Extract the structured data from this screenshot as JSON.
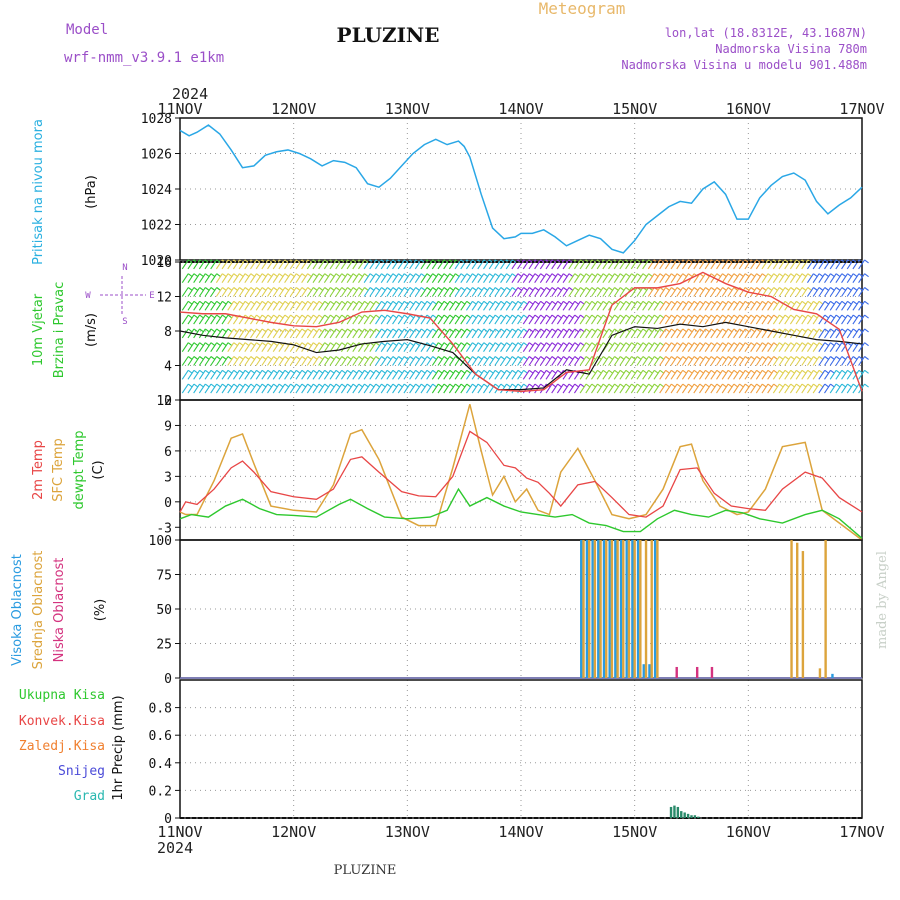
{
  "header": {
    "model_label": "Model",
    "model_name": "wrf-nmm_v3.9.1 e1km",
    "station": "PLUZINE",
    "product": "Meteogram",
    "lonlat": "lon,lat (18.8312E, 43.1687N)",
    "elevation": "Nadmorska Visina 780m",
    "model_elevation": "Nadmorska Visina u modelu 901.488m"
  },
  "footer": {
    "station": "PLUZINE",
    "credit": "made by Angel"
  },
  "time_axis": {
    "year": "2024",
    "ticks": [
      "11NOV",
      "12NOV",
      "13NOV",
      "14NOV",
      "15NOV",
      "16NOV",
      "17NOV"
    ]
  },
  "panel_labels": {
    "pressure": {
      "name": "Pritisak na nivou mora",
      "unit": "(hPa)"
    },
    "wind": {
      "name1": "10m Vjetar",
      "name2": "Brzina i Pravac",
      "unit": "(m/s)",
      "compass_n": "N",
      "compass_s": "S",
      "compass_e": "E",
      "compass_w": "W"
    },
    "temp": {
      "l1": "2m Temp",
      "l2": "SFC Temp",
      "l3": "dewpt Temp",
      "unit": "(C)"
    },
    "cloud": {
      "l1": "Visoka Oblacnost",
      "l2": "Srednja Oblacnost",
      "l3": "Niska Oblacnost",
      "unit": "(%)"
    },
    "precip": {
      "legend": [
        "Ukupna Kisa",
        "Konvek.Kisa",
        "Zaledj.Kisa",
        "Snijeg",
        "Grad"
      ],
      "unit": "1hr Precip (mm)"
    }
  },
  "colors": {
    "pressure": "#2aa7e6",
    "temp2m": "#e84646",
    "sfc": "#dca43c",
    "dewpt": "#2ec82e",
    "high_cloud": "#2a9be0",
    "mid_cloud": "#dca43c",
    "low_cloud": "#d4337f",
    "rain": "#2ec82e",
    "conv": "#e84646",
    "frz": "#f08030",
    "snow": "#4a4ad8",
    "hail": "#2ab8b0",
    "title_purple": "#9b4fc8",
    "title_orange": "#e8b86a",
    "legend_cyan": "#2ab0e0"
  },
  "chart_data": [
    {
      "type": "line",
      "title": "",
      "ylabel": "Pritisak na nivou mora (hPa)",
      "ylim": [
        1020,
        1028
      ],
      "yticks": [
        "1020",
        "1022",
        "1024",
        "1026",
        "1028"
      ],
      "x_start": "11NOV",
      "x_end": "17NOV",
      "series": [
        {
          "name": "Pritisak na nivou mora",
          "x": [
            0,
            0.08,
            0.15,
            0.25,
            0.35,
            0.45,
            0.55,
            0.65,
            0.75,
            0.85,
            0.95,
            1.05,
            1.15,
            1.25,
            1.35,
            1.45,
            1.55,
            1.65,
            1.75,
            1.85,
            1.95,
            2.05,
            2.15,
            2.25,
            2.35,
            2.45,
            2.5,
            2.55,
            2.65,
            2.75,
            2.85,
            2.95,
            3.0,
            3.1,
            3.2,
            3.3,
            3.4,
            3.5,
            3.6,
            3.7,
            3.8,
            3.9,
            4.0,
            4.1,
            4.2,
            4.3,
            4.4,
            4.5,
            4.6,
            4.7,
            4.8,
            4.9,
            5.0,
            5.1,
            5.2,
            5.3,
            5.4,
            5.5,
            5.6,
            5.7,
            5.8,
            5.9,
            6.0
          ],
          "y": [
            1027.3,
            1027.0,
            1027.2,
            1027.6,
            1027.1,
            1026.2,
            1025.2,
            1025.3,
            1025.9,
            1026.1,
            1026.2,
            1026.0,
            1025.7,
            1025.3,
            1025.6,
            1025.5,
            1025.2,
            1024.3,
            1024.1,
            1024.6,
            1025.3,
            1026.0,
            1026.5,
            1026.8,
            1026.5,
            1026.7,
            1026.4,
            1025.8,
            1023.7,
            1021.8,
            1021.2,
            1021.3,
            1021.5,
            1021.5,
            1021.7,
            1021.3,
            1020.8,
            1021.1,
            1021.4,
            1021.2,
            1020.6,
            1020.4,
            1021.1,
            1022.0,
            1022.5,
            1023.0,
            1023.3,
            1023.2,
            1024.0,
            1024.4,
            1023.7,
            1022.3,
            1022.3,
            1023.5,
            1024.2,
            1024.7,
            1024.9,
            1024.5,
            1023.3,
            1022.6,
            1023.1,
            1023.5,
            1024.1
          ]
        }
      ]
    },
    {
      "type": "line",
      "title": "",
      "ylabel": "10m Vjetar Brzina i Pravac (m/s)",
      "ylim": [
        0,
        16
      ],
      "yticks": [
        "0",
        "4",
        "8",
        "12",
        "16"
      ],
      "series": [
        {
          "name": "",
          "x": [
            0,
            0.2,
            0.4,
            0.6,
            0.8,
            1.0,
            1.2,
            1.4,
            1.6,
            1.8,
            2.0,
            2.2,
            2.4,
            2.6,
            2.8,
            3.0,
            3.2,
            3.4,
            3.6,
            3.8,
            4.0,
            4.2,
            4.4,
            4.6,
            4.8,
            5.0,
            5.2,
            5.4,
            5.6,
            5.8,
            6.0
          ],
          "y": [
            8.0,
            7.5,
            7.2,
            7.0,
            6.8,
            6.4,
            5.5,
            5.8,
            6.5,
            6.8,
            7.0,
            6.3,
            5.5,
            3.0,
            1.2,
            1.2,
            1.4,
            3.5,
            3.0,
            7.5,
            8.5,
            8.3,
            8.8,
            8.5,
            9.0,
            8.5,
            8.0,
            7.5,
            7.0,
            6.8,
            6.5
          ]
        },
        {
          "name": "",
          "x": [
            0,
            0.2,
            0.4,
            0.6,
            0.8,
            1.0,
            1.2,
            1.4,
            1.6,
            1.8,
            2.0,
            2.2,
            2.4,
            2.6,
            2.8,
            3.0,
            3.2,
            3.4,
            3.6,
            3.8,
            4.0,
            4.2,
            4.4,
            4.6,
            4.8,
            5.0,
            5.2,
            5.4,
            5.6,
            5.8,
            6.0
          ],
          "y": [
            10.2,
            10.0,
            10.0,
            9.5,
            9.0,
            8.6,
            8.5,
            9.0,
            10.2,
            10.4,
            10.0,
            9.5,
            6.5,
            3.0,
            1.2,
            1.0,
            1.2,
            3.2,
            3.5,
            11.0,
            13.0,
            13.0,
            13.5,
            14.8,
            13.5,
            12.5,
            12.0,
            10.5,
            10.0,
            8.2,
            1.0
          ]
        }
      ]
    },
    {
      "type": "line",
      "title": "",
      "ylabel": "Temp (C)",
      "ylim": [
        -4.5,
        12
      ],
      "yticks": [
        "-3",
        "0",
        "3",
        "6",
        "9",
        "12"
      ],
      "series": [
        {
          "name": "2m Temp",
          "x": [
            0,
            0.05,
            0.15,
            0.3,
            0.45,
            0.55,
            0.65,
            0.8,
            1.0,
            1.2,
            1.35,
            1.5,
            1.6,
            1.75,
            1.95,
            2.1,
            2.25,
            2.4,
            2.55,
            2.7,
            2.85,
            2.95,
            3.05,
            3.15,
            3.25,
            3.35,
            3.5,
            3.65,
            3.8,
            3.95,
            4.1,
            4.25,
            4.4,
            4.55,
            4.7,
            4.85,
            5.0,
            5.15,
            5.3,
            5.5,
            5.65,
            5.8,
            6.0
          ],
          "y": [
            -1.2,
            0.0,
            -0.3,
            1.5,
            4.0,
            4.8,
            3.5,
            1.2,
            0.6,
            0.3,
            1.5,
            5.0,
            5.3,
            3.5,
            1.2,
            0.7,
            0.6,
            3.0,
            8.3,
            7.0,
            4.3,
            4.0,
            2.8,
            2.3,
            1.0,
            -0.5,
            2.0,
            2.4,
            0.5,
            -1.5,
            -1.8,
            -0.5,
            3.8,
            4.0,
            1.0,
            -0.5,
            -0.8,
            -1.0,
            1.5,
            3.5,
            2.8,
            0.5,
            -1.2
          ]
        },
        {
          "name": "SFC Temp",
          "x": [
            0,
            0.05,
            0.15,
            0.3,
            0.45,
            0.55,
            0.65,
            0.8,
            1.0,
            1.2,
            1.35,
            1.5,
            1.6,
            1.75,
            1.95,
            2.1,
            2.25,
            2.4,
            2.55,
            2.65,
            2.75,
            2.85,
            2.95,
            3.05,
            3.15,
            3.25,
            3.35,
            3.5,
            3.65,
            3.8,
            3.95,
            4.1,
            4.25,
            4.4,
            4.5,
            4.6,
            4.75,
            4.9,
            5.0,
            5.15,
            5.3,
            5.5,
            5.65,
            5.8,
            6.0
          ],
          "y": [
            -1.2,
            -1.5,
            -1.5,
            2.5,
            7.5,
            8.0,
            4.5,
            -0.5,
            -1.0,
            -1.2,
            2.0,
            8.0,
            8.5,
            5.0,
            -1.8,
            -2.8,
            -2.8,
            4.0,
            11.5,
            6.0,
            0.8,
            3.0,
            0.0,
            1.5,
            -1.0,
            -1.5,
            3.5,
            6.3,
            2.5,
            -1.5,
            -2.0,
            -1.5,
            1.5,
            6.5,
            6.8,
            2.5,
            -0.5,
            -1.5,
            -1.2,
            1.5,
            6.5,
            7.0,
            -1.0,
            -2.5,
            -4.5
          ]
        },
        {
          "name": "dewpt Temp",
          "x": [
            0,
            0.1,
            0.25,
            0.4,
            0.55,
            0.7,
            0.85,
            1.0,
            1.2,
            1.4,
            1.5,
            1.65,
            1.8,
            2.0,
            2.2,
            2.35,
            2.45,
            2.55,
            2.7,
            2.85,
            3.0,
            3.15,
            3.3,
            3.45,
            3.6,
            3.75,
            3.9,
            4.05,
            4.2,
            4.35,
            4.5,
            4.65,
            4.8,
            4.95,
            5.1,
            5.3,
            5.5,
            5.65,
            5.8,
            6.0
          ],
          "y": [
            -2.0,
            -1.5,
            -1.8,
            -0.5,
            0.3,
            -0.8,
            -1.5,
            -1.6,
            -1.8,
            -0.3,
            0.3,
            -0.8,
            -1.8,
            -2.0,
            -1.8,
            -1.0,
            1.5,
            -0.5,
            0.5,
            -0.5,
            -1.2,
            -1.5,
            -1.8,
            -1.5,
            -2.5,
            -2.8,
            -3.5,
            -3.5,
            -2.0,
            -1.0,
            -1.5,
            -1.8,
            -1.0,
            -1.3,
            -2.0,
            -2.5,
            -1.5,
            -1.0,
            -2.0,
            -4.3
          ]
        }
      ]
    },
    {
      "type": "bar",
      "title": "",
      "ylabel": "Oblacnost (%)",
      "ylim": [
        0,
        100
      ],
      "yticks": [
        "0",
        "25",
        "50",
        "75",
        "100"
      ],
      "series": [
        {
          "name": "Visoka Oblacnost",
          "x": [
            3.53,
            3.58,
            3.63,
            3.68,
            3.73,
            3.78,
            3.83,
            3.88,
            3.93,
            3.98,
            4.03,
            4.08,
            4.13,
            4.18,
            5.74
          ],
          "y": [
            100,
            100,
            100,
            100,
            100,
            100,
            100,
            100,
            100,
            100,
            100,
            10,
            10,
            100,
            3
          ]
        },
        {
          "name": "Srednja Oblacnost",
          "x": [
            3.55,
            3.6,
            3.65,
            3.7,
            3.75,
            3.8,
            3.85,
            3.9,
            3.95,
            4.0,
            4.05,
            4.1,
            4.15,
            4.2,
            5.38,
            5.43,
            5.48,
            5.63,
            5.68
          ],
          "y": [
            100,
            100,
            100,
            100,
            100,
            100,
            100,
            100,
            100,
            100,
            100,
            100,
            100,
            100,
            100,
            98,
            92,
            7,
            100
          ]
        },
        {
          "name": "Niska Oblacnost",
          "x": [
            4.37,
            4.55,
            4.68
          ],
          "y": [
            8,
            8,
            8
          ]
        }
      ]
    },
    {
      "type": "bar",
      "title": "",
      "ylabel": "1hr Precip (mm)",
      "ylim": [
        0,
        1.0
      ],
      "yticks": [
        "0",
        "0.2",
        "0.4",
        "0.6",
        "0.8"
      ],
      "series": [
        {
          "name": "Ukupna Kisa",
          "x": [
            4.32,
            4.35,
            4.38,
            4.41,
            4.44,
            4.47,
            4.5,
            4.53,
            4.56
          ],
          "y": [
            0.08,
            0.09,
            0.08,
            0.05,
            0.04,
            0.03,
            0.02,
            0.02,
            0.01
          ]
        }
      ]
    }
  ]
}
